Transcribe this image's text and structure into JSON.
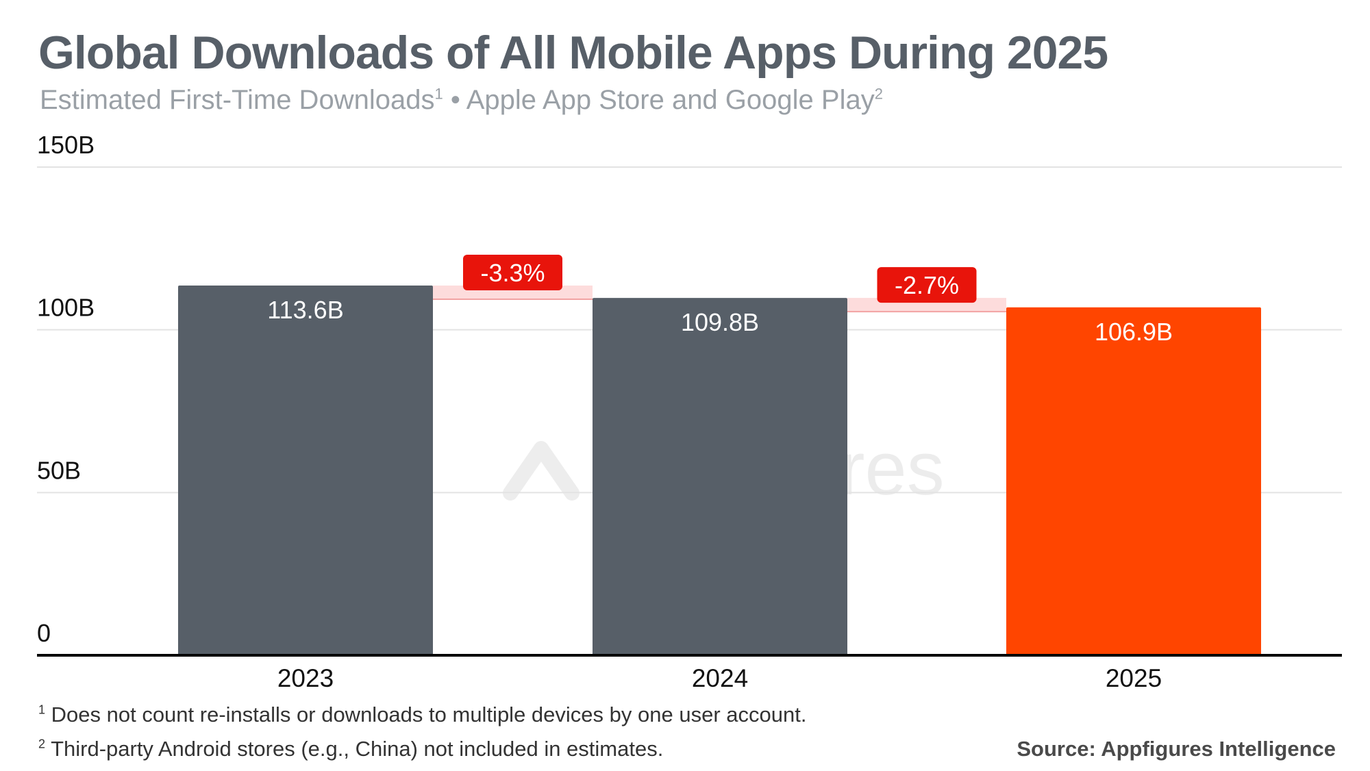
{
  "title": "Global Downloads of All Mobile Apps During 2025",
  "subtitle": {
    "text1": "Estimated First-Time Downloads",
    "sup1": "1",
    "sep": " • Apple App Store and Google Play",
    "sup2": "2"
  },
  "watermark": "appfigures",
  "footnotes": [
    {
      "mark": "1",
      "text": " Does not count re-installs or downloads to multiple devices by one user account."
    },
    {
      "mark": "2",
      "text": " Third-party Android stores (e.g., China) not included in estimates."
    }
  ],
  "source": "Source: Appfigures Intelligence",
  "chart_data": {
    "type": "bar",
    "title": "Global Downloads of All Mobile Apps During 2025",
    "categories": [
      "2023",
      "2024",
      "2025"
    ],
    "values": [
      113.6,
      109.8,
      106.9
    ],
    "value_labels": [
      "113.6B",
      "109.8B",
      "106.9B"
    ],
    "unit": "B",
    "changes": [
      "-3.3%",
      "-2.7%"
    ],
    "ylim": [
      0,
      150
    ],
    "yticks": [
      0,
      50,
      100,
      150
    ],
    "ytick_labels": [
      "0",
      "50B",
      "100B",
      "150B"
    ],
    "grid": true,
    "colors": {
      "bar": "#575f68",
      "highlight": "#ff4500",
      "change_badge": "#e8140b",
      "change_band": "#fddcdc"
    }
  }
}
